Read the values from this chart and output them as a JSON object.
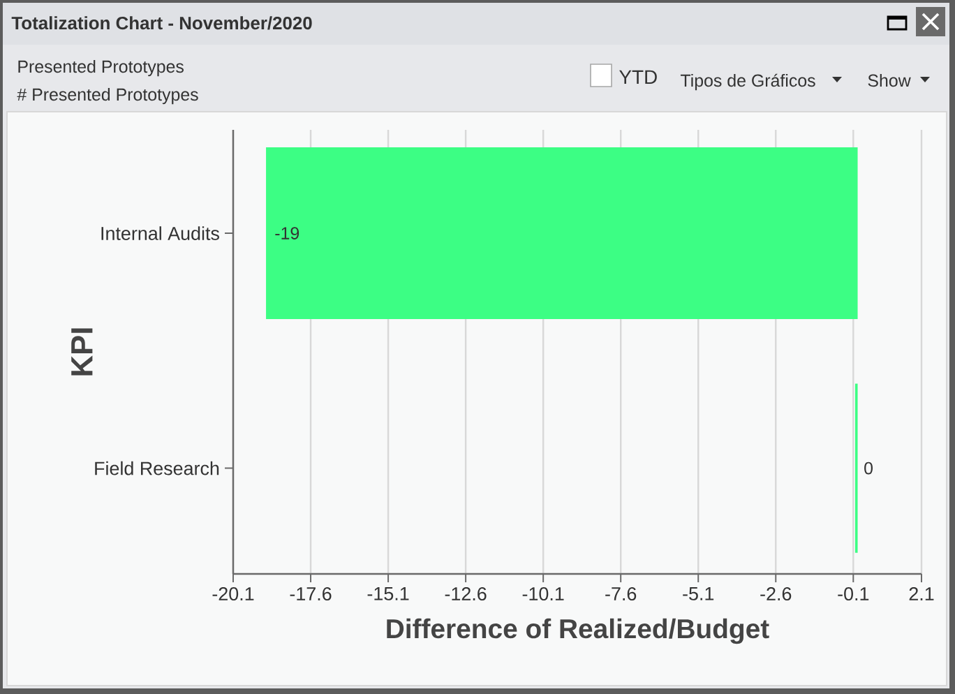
{
  "chart_data": {
    "type": "bar",
    "orientation": "horizontal",
    "title": "Totalization Chart - November/2020",
    "subtitle": "Presented Prototypes",
    "annotations": [
      "# Presented Prototypes",
      "YTD",
      "Tipos de Gráficos",
      "Show"
    ],
    "xlabel": "Difference of Realized/Budget",
    "ylabel": "KPI",
    "categories": [
      "Internal Audits",
      "Field Research"
    ],
    "values": [
      -19,
      0
    ],
    "color": "#3cfe84",
    "xlim": [
      -20.1,
      2.1
    ],
    "xticks": [
      -20.1,
      -17.6,
      -15.1,
      -12.6,
      -10.1,
      -7.6,
      -5.1,
      -2.6,
      -0.1,
      2.1
    ],
    "grid": "x",
    "data_labels": true
  }
}
